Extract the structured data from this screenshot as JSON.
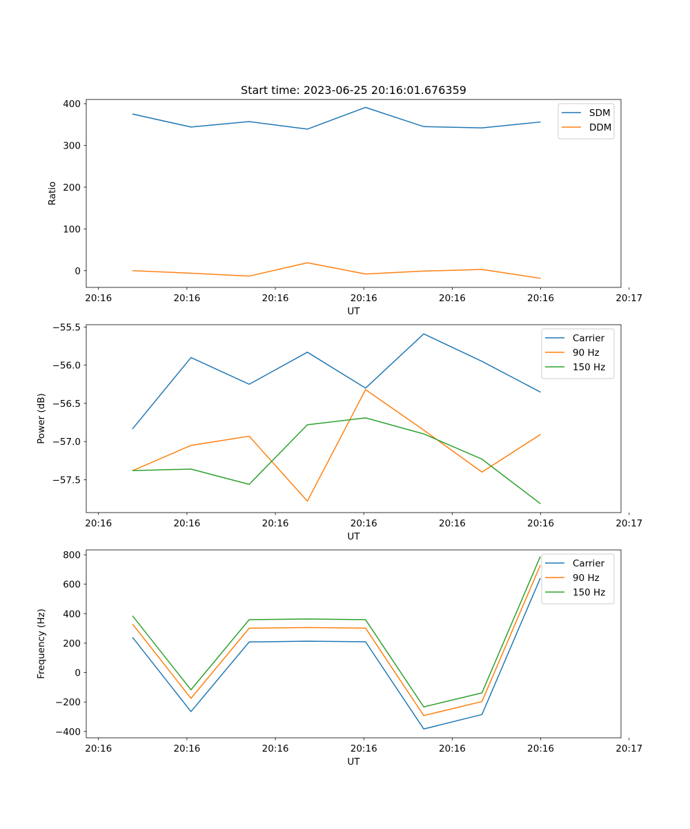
{
  "figure": {
    "title": "Start time: 2023-06-25 20:16:01.676359"
  },
  "colors": {
    "blue": "#1f77b4",
    "orange": "#ff7f0e",
    "green": "#2ca02c"
  },
  "chart_data": [
    {
      "type": "line",
      "title": "Start time: 2023-06-25 20:16:01.676359",
      "xlabel": "UT",
      "ylabel": "Ratio",
      "x": [
        1,
        2,
        3,
        4,
        5,
        6,
        7,
        8
      ],
      "xlim": [
        0.2,
        9.39
      ],
      "x_ticks": [
        0.41,
        1.93,
        3.45,
        4.97,
        6.49,
        8.01,
        9.53
      ],
      "x_tick_labels": [
        "20:16",
        "20:16",
        "20:16",
        "20:16",
        "20:16",
        "20:16",
        "20:17"
      ],
      "ylim": [
        -40,
        410
      ],
      "y_ticks": [
        0,
        100,
        200,
        300,
        400
      ],
      "y_tick_labels": [
        "0",
        "100",
        "200",
        "300",
        "400"
      ],
      "legend_position": "upper-right",
      "grid": false,
      "series": [
        {
          "name": "SDM",
          "color": "#1f77b4",
          "values": [
            375,
            344,
            357,
            339,
            391,
            345,
            342,
            356
          ]
        },
        {
          "name": "DDM",
          "color": "#ff7f0e",
          "values": [
            0,
            -6,
            -13,
            19,
            -8,
            -1,
            3,
            -18
          ]
        }
      ]
    },
    {
      "type": "line",
      "title": "",
      "xlabel": "UT",
      "ylabel": "Power (dB)",
      "x": [
        1,
        2,
        3,
        4,
        5,
        6,
        7,
        8
      ],
      "xlim": [
        0.2,
        9.39
      ],
      "x_ticks": [
        0.41,
        1.93,
        3.45,
        4.97,
        6.49,
        8.01,
        9.53
      ],
      "x_tick_labels": [
        "20:16",
        "20:16",
        "20:16",
        "20:16",
        "20:16",
        "20:16",
        "20:17"
      ],
      "ylim": [
        -57.93,
        -55.47
      ],
      "y_ticks": [
        -57.5,
        -57.0,
        -56.5,
        -56.0,
        -55.5
      ],
      "y_tick_labels": [
        "−57.5",
        "−57.0",
        "−56.5",
        "−56.0",
        "−55.5"
      ],
      "legend_position": "upper-right",
      "grid": false,
      "series": [
        {
          "name": "Carrier",
          "color": "#1f77b4",
          "values": [
            -56.83,
            -55.9,
            -56.25,
            -55.83,
            -56.3,
            -55.59,
            -55.95,
            -56.35
          ]
        },
        {
          "name": "90 Hz",
          "color": "#ff7f0e",
          "values": [
            -57.38,
            -57.05,
            -56.93,
            -57.78,
            -56.32,
            -56.85,
            -57.4,
            -56.91
          ]
        },
        {
          "name": "150 Hz",
          "color": "#2ca02c",
          "values": [
            -57.38,
            -57.36,
            -57.56,
            -56.78,
            -56.69,
            -56.9,
            -57.23,
            -57.81
          ]
        }
      ]
    },
    {
      "type": "line",
      "title": "",
      "xlabel": "UT",
      "ylabel": "Frequency (Hz)",
      "x": [
        1,
        2,
        3,
        4,
        5,
        6,
        7,
        8
      ],
      "xlim": [
        0.2,
        9.39
      ],
      "x_ticks": [
        0.41,
        1.93,
        3.45,
        4.97,
        6.49,
        8.01,
        9.53
      ],
      "x_tick_labels": [
        "20:16",
        "20:16",
        "20:16",
        "20:16",
        "20:16",
        "20:16",
        "20:17"
      ],
      "ylim": [
        -443,
        833
      ],
      "y_ticks": [
        -400,
        -200,
        0,
        200,
        400,
        600,
        800
      ],
      "y_tick_labels": [
        "−400",
        "−200",
        "0",
        "200",
        "400",
        "600",
        "800"
      ],
      "legend_position": "upper-right",
      "grid": false,
      "series": [
        {
          "name": "Carrier",
          "color": "#1f77b4",
          "values": [
            237,
            -265,
            208,
            213,
            209,
            -383,
            -285,
            638
          ]
        },
        {
          "name": "90 Hz",
          "color": "#ff7f0e",
          "values": [
            327,
            -175,
            301,
            306,
            302,
            -292,
            -197,
            726
          ]
        },
        {
          "name": "150 Hz",
          "color": "#2ca02c",
          "values": [
            383,
            -117,
            359,
            364,
            359,
            -233,
            -138,
            785
          ]
        }
      ]
    }
  ]
}
